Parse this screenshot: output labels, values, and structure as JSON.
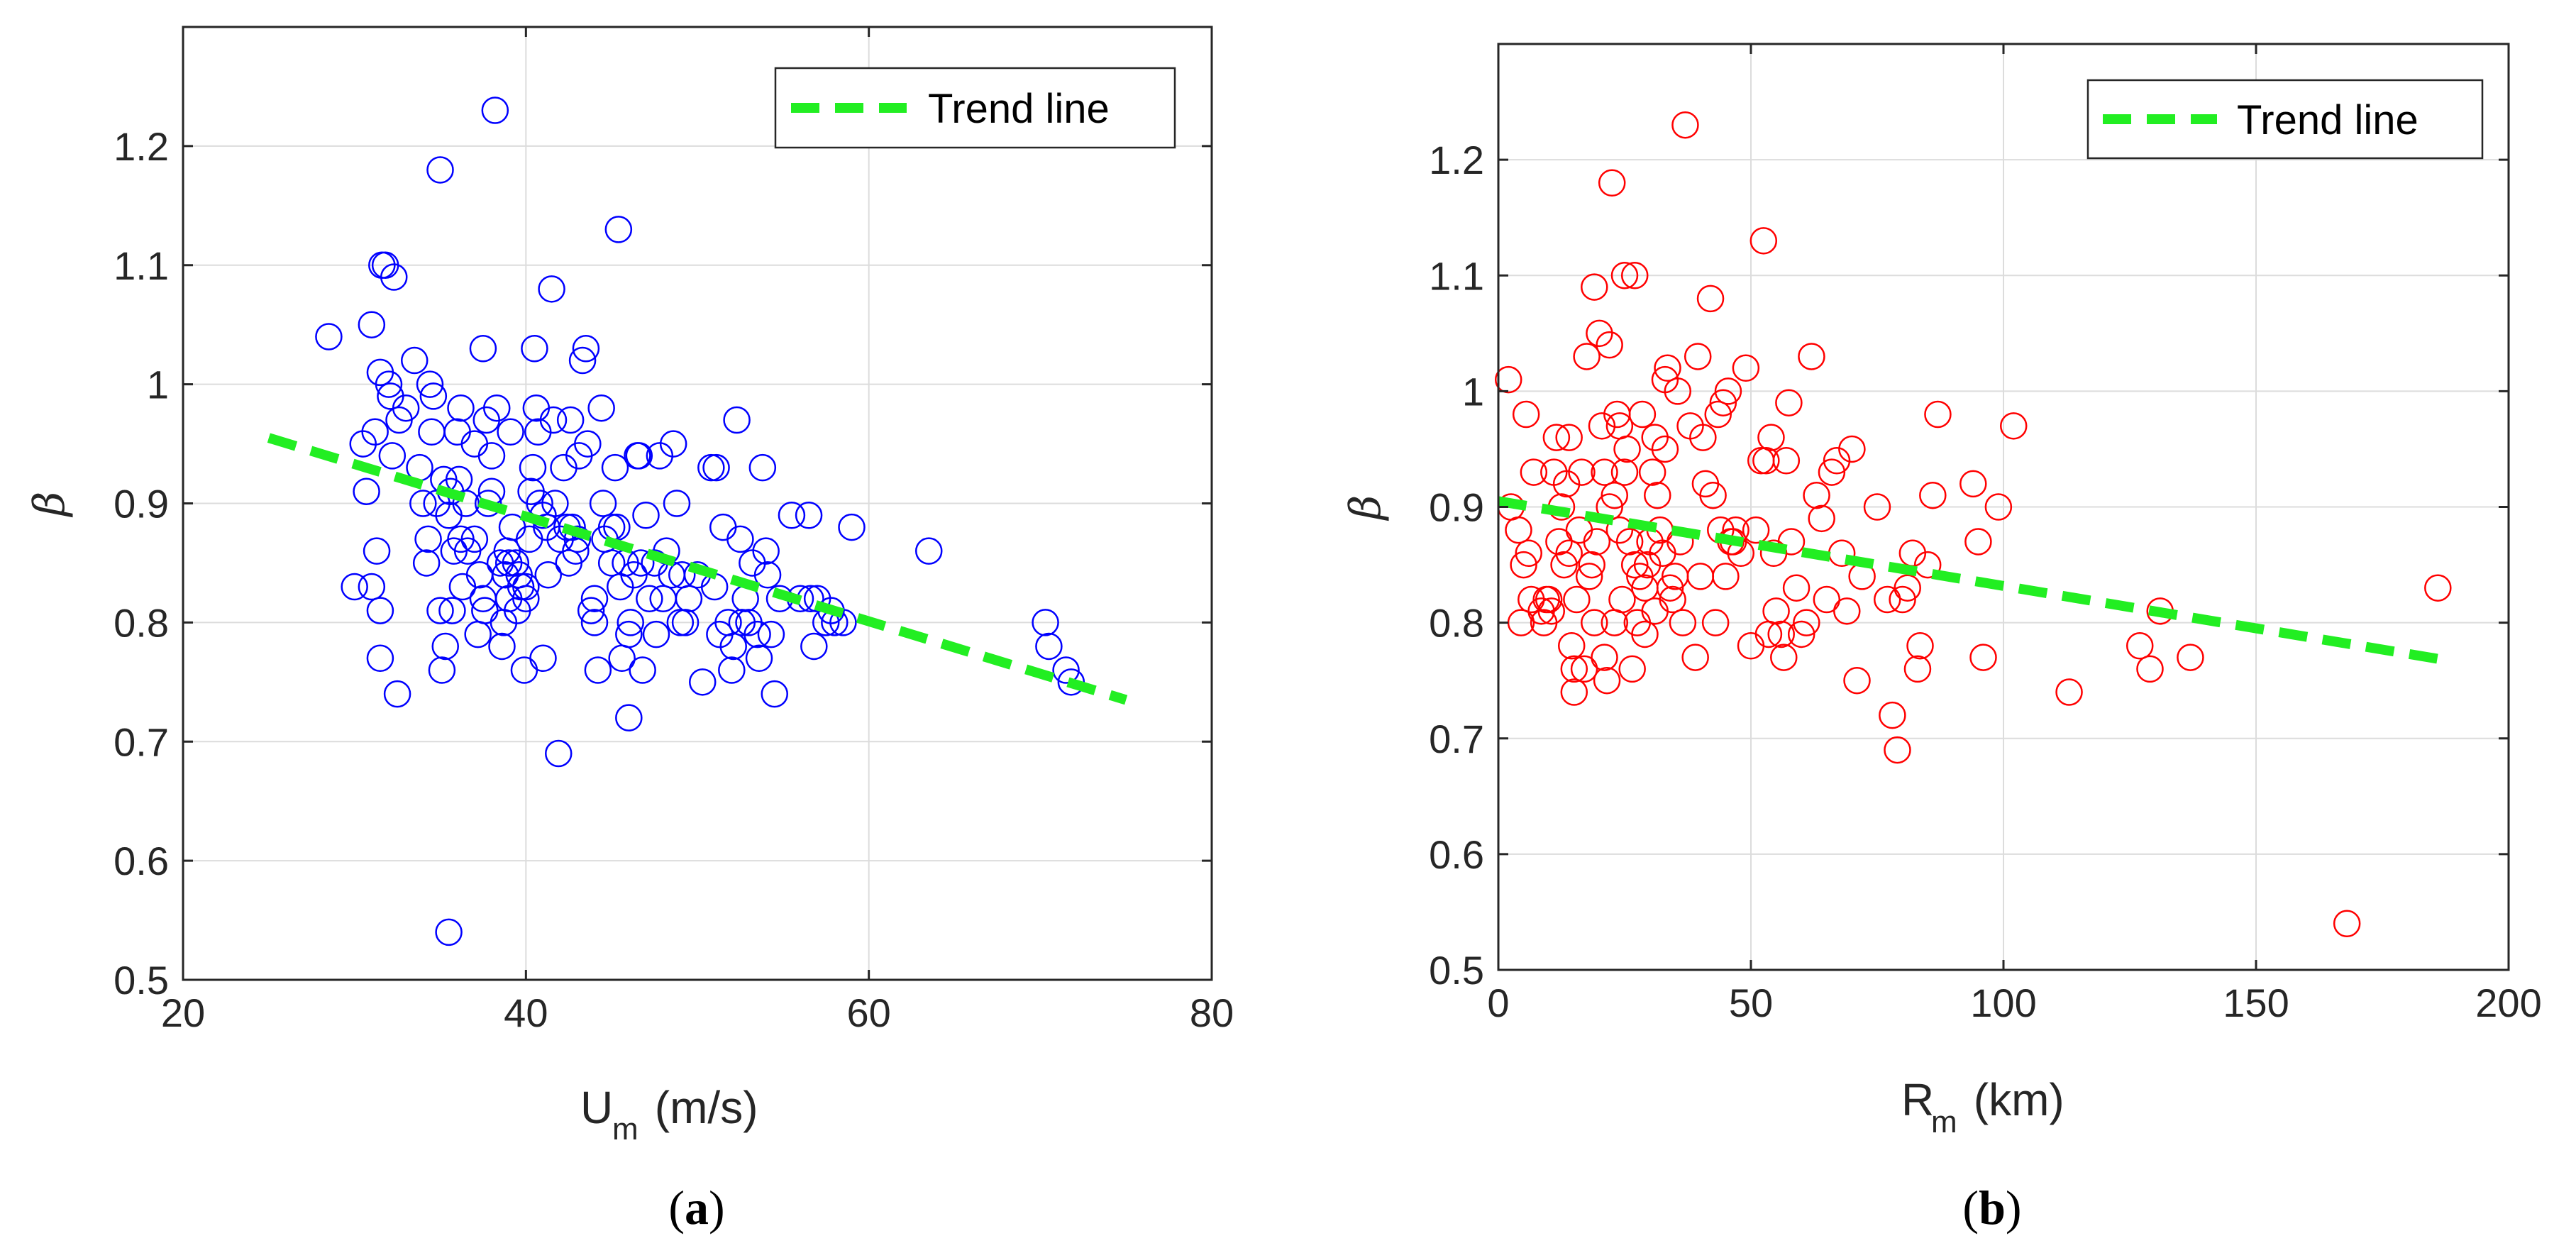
{
  "chart_data": [
    {
      "type": "scatter",
      "panel_label": "(a)",
      "panel_letter": "a",
      "xlabel_main": "U",
      "xlabel_sub": "m",
      "xlabel_unit": " (m/s)",
      "ylabel": "β",
      "xlim": [
        20,
        80
      ],
      "ylim": [
        0.5,
        1.3
      ],
      "xticks": [
        20,
        40,
        60,
        80
      ],
      "xtick_labels": [
        "20",
        "40",
        "60",
        "80"
      ],
      "yticks": [
        0.5,
        0.6,
        0.7,
        0.8,
        0.9,
        1.0,
        1.1,
        1.2
      ],
      "ytick_labels": [
        "0.5",
        "0.6",
        "0.7",
        "0.8",
        "0.9",
        "1",
        "1.1",
        "1.2"
      ],
      "grid": true,
      "legend": {
        "label": "Trend line",
        "placement": "top-right"
      },
      "marker_color": "#0000ff",
      "trend_color": "#22ee22",
      "trend": {
        "x": [
          25,
          75
        ],
        "y": [
          0.955,
          0.735
        ]
      },
      "points": [
        [
          28.5,
          1.04
        ],
        [
          30,
          0.83
        ],
        [
          30.5,
          0.95
        ],
        [
          30.7,
          0.91
        ],
        [
          31,
          0.83
        ],
        [
          31,
          1.05
        ],
        [
          31.2,
          0.96
        ],
        [
          31.3,
          0.86
        ],
        [
          31.5,
          0.77
        ],
        [
          31.5,
          0.81
        ],
        [
          31.5,
          1.01
        ],
        [
          31.6,
          1.1
        ],
        [
          31.8,
          1.1
        ],
        [
          32,
          1.0
        ],
        [
          32.1,
          0.99
        ],
        [
          32.2,
          0.94
        ],
        [
          32.3,
          1.09
        ],
        [
          32.5,
          0.74
        ],
        [
          32.6,
          0.97
        ],
        [
          33,
          0.98
        ],
        [
          33.5,
          1.02
        ],
        [
          33.8,
          0.93
        ],
        [
          34,
          0.9
        ],
        [
          34.2,
          0.85
        ],
        [
          34.3,
          0.87
        ],
        [
          34.4,
          1.0
        ],
        [
          34.5,
          0.96
        ],
        [
          34.6,
          0.99
        ],
        [
          34.8,
          0.9
        ],
        [
          35,
          1.18
        ],
        [
          35,
          0.81
        ],
        [
          35.1,
          0.76
        ],
        [
          35.2,
          0.92
        ],
        [
          35.3,
          0.78
        ],
        [
          35.5,
          0.54
        ],
        [
          35.5,
          0.89
        ],
        [
          35.6,
          0.91
        ],
        [
          35.7,
          0.81
        ],
        [
          35.8,
          0.86
        ],
        [
          36,
          0.96
        ],
        [
          36.1,
          0.92
        ],
        [
          36.2,
          0.98
        ],
        [
          36.2,
          0.87
        ],
        [
          36.3,
          0.83
        ],
        [
          36.5,
          0.9
        ],
        [
          36.6,
          0.86
        ],
        [
          37,
          0.87
        ],
        [
          37,
          0.95
        ],
        [
          37.2,
          0.79
        ],
        [
          37.3,
          0.84
        ],
        [
          37.5,
          1.03
        ],
        [
          37.5,
          0.82
        ],
        [
          37.6,
          0.81
        ],
        [
          37.7,
          0.97
        ],
        [
          37.8,
          0.9
        ],
        [
          38,
          0.91
        ],
        [
          38,
          0.94
        ],
        [
          38.2,
          1.23
        ],
        [
          38.3,
          0.98
        ],
        [
          38.5,
          0.85
        ],
        [
          38.6,
          0.78
        ],
        [
          38.7,
          0.8
        ],
        [
          38.8,
          0.84
        ],
        [
          38.9,
          0.86
        ],
        [
          39,
          0.82
        ],
        [
          39,
          0.85
        ],
        [
          39.1,
          0.96
        ],
        [
          39.2,
          0.88
        ],
        [
          39.4,
          0.85
        ],
        [
          39.5,
          0.81
        ],
        [
          39.6,
          0.84
        ],
        [
          39.7,
          0.83
        ],
        [
          39.9,
          0.76
        ],
        [
          40,
          0.83
        ],
        [
          40,
          0.82
        ],
        [
          40.2,
          0.87
        ],
        [
          40.3,
          0.91
        ],
        [
          40.4,
          0.93
        ],
        [
          40.5,
          1.03
        ],
        [
          40.6,
          0.98
        ],
        [
          40.7,
          0.96
        ],
        [
          40.8,
          0.9
        ],
        [
          41,
          0.77
        ],
        [
          41,
          0.89
        ],
        [
          41.2,
          0.88
        ],
        [
          41.3,
          0.84
        ],
        [
          41.5,
          1.08
        ],
        [
          41.6,
          0.97
        ],
        [
          41.7,
          0.9
        ],
        [
          41.9,
          0.69
        ],
        [
          42,
          0.87
        ],
        [
          42.2,
          0.93
        ],
        [
          42.4,
          0.88
        ],
        [
          42.5,
          0.85
        ],
        [
          42.6,
          0.97
        ],
        [
          42.7,
          0.88
        ],
        [
          42.9,
          0.86
        ],
        [
          43,
          0.87
        ],
        [
          43.1,
          0.94
        ],
        [
          43.3,
          1.02
        ],
        [
          43.5,
          1.03
        ],
        [
          43.6,
          0.95
        ],
        [
          43.8,
          0.81
        ],
        [
          44,
          0.82
        ],
        [
          44,
          0.8
        ],
        [
          44.2,
          0.76
        ],
        [
          44.4,
          0.98
        ],
        [
          44.5,
          0.9
        ],
        [
          44.6,
          0.87
        ],
        [
          45,
          0.85
        ],
        [
          45,
          0.88
        ],
        [
          45.2,
          0.93
        ],
        [
          45.3,
          0.88
        ],
        [
          45.4,
          1.13
        ],
        [
          45.5,
          0.83
        ],
        [
          45.6,
          0.77
        ],
        [
          45.8,
          0.85
        ],
        [
          46,
          0.72
        ],
        [
          46,
          0.79
        ],
        [
          46.1,
          0.8
        ],
        [
          46.3,
          0.84
        ],
        [
          46.5,
          0.94
        ],
        [
          46.6,
          0.94
        ],
        [
          46.7,
          0.85
        ],
        [
          46.8,
          0.76
        ],
        [
          47,
          0.89
        ],
        [
          47.2,
          0.82
        ],
        [
          47.5,
          0.85
        ],
        [
          47.6,
          0.79
        ],
        [
          47.8,
          0.94
        ],
        [
          48,
          0.82
        ],
        [
          48.2,
          0.86
        ],
        [
          48.5,
          0.84
        ],
        [
          48.6,
          0.95
        ],
        [
          48.8,
          0.9
        ],
        [
          49,
          0.8
        ],
        [
          49.1,
          0.84
        ],
        [
          49.3,
          0.8
        ],
        [
          49.5,
          0.82
        ],
        [
          50,
          0.84
        ],
        [
          50.3,
          0.75
        ],
        [
          50.8,
          0.93
        ],
        [
          51,
          0.83
        ],
        [
          51.1,
          0.93
        ],
        [
          51.3,
          0.79
        ],
        [
          51.5,
          0.88
        ],
        [
          51.8,
          0.8
        ],
        [
          52,
          0.76
        ],
        [
          52.1,
          0.78
        ],
        [
          52.3,
          0.97
        ],
        [
          52.5,
          0.87
        ],
        [
          52.6,
          0.8
        ],
        [
          52.8,
          0.82
        ],
        [
          53,
          0.8
        ],
        [
          53.2,
          0.85
        ],
        [
          53.5,
          0.79
        ],
        [
          53.6,
          0.77
        ],
        [
          53.8,
          0.93
        ],
        [
          54,
          0.86
        ],
        [
          54.1,
          0.84
        ],
        [
          54.3,
          0.79
        ],
        [
          54.5,
          0.74
        ],
        [
          54.8,
          0.82
        ],
        [
          55.5,
          0.89
        ],
        [
          56,
          0.82
        ],
        [
          56.5,
          0.89
        ],
        [
          56.6,
          0.82
        ],
        [
          56.8,
          0.78
        ],
        [
          57,
          0.82
        ],
        [
          57.5,
          0.8
        ],
        [
          57.8,
          0.81
        ],
        [
          58,
          0.8
        ],
        [
          58.5,
          0.8
        ],
        [
          59,
          0.88
        ],
        [
          63.5,
          0.86
        ],
        [
          70.3,
          0.8
        ],
        [
          70.5,
          0.78
        ],
        [
          71.5,
          0.76
        ],
        [
          71.8,
          0.75
        ]
      ]
    },
    {
      "type": "scatter",
      "panel_label": "(b)",
      "panel_letter": "b",
      "xlabel_main": "R",
      "xlabel_sub": "m",
      "xlabel_unit": " (km)",
      "ylabel": "β",
      "xlim": [
        0,
        200
      ],
      "ylim": [
        0.5,
        1.3
      ],
      "xticks": [
        0,
        50,
        100,
        150,
        200
      ],
      "xtick_labels": [
        "0",
        "50",
        "100",
        "150",
        "200"
      ],
      "yticks": [
        0.5,
        0.6,
        0.7,
        0.8,
        0.9,
        1.0,
        1.1,
        1.2
      ],
      "ytick_labels": [
        "0.5",
        "0.6",
        "0.7",
        "0.8",
        "0.9",
        "1",
        "1.1",
        "1.2"
      ],
      "grid": true,
      "legend": {
        "label": "Trend line",
        "placement": "top-right"
      },
      "marker_color": "#ff0000",
      "trend_color": "#22ee22",
      "trend": {
        "x": [
          0,
          187
        ],
        "y": [
          0.905,
          0.768
        ]
      },
      "points": [
        [
          2,
          1.01
        ],
        [
          2.5,
          0.9
        ],
        [
          4,
          0.88
        ],
        [
          4.5,
          0.8
        ],
        [
          5,
          0.85
        ],
        [
          5.5,
          0.98
        ],
        [
          6,
          0.86
        ],
        [
          6.5,
          0.82
        ],
        [
          7,
          0.93
        ],
        [
          8.5,
          0.81
        ],
        [
          9,
          0.8
        ],
        [
          9.5,
          0.82
        ],
        [
          10,
          0.82
        ],
        [
          10.5,
          0.81
        ],
        [
          11,
          0.93
        ],
        [
          11.5,
          0.96
        ],
        [
          12,
          0.87
        ],
        [
          12.5,
          0.9
        ],
        [
          13,
          0.85
        ],
        [
          13.5,
          0.92
        ],
        [
          14,
          0.96
        ],
        [
          14,
          0.86
        ],
        [
          14.5,
          0.78
        ],
        [
          15,
          0.74
        ],
        [
          15,
          0.76
        ],
        [
          15.5,
          0.82
        ],
        [
          16,
          0.88
        ],
        [
          16.5,
          0.93
        ],
        [
          17,
          0.76
        ],
        [
          17.5,
          1.03
        ],
        [
          18,
          0.84
        ],
        [
          18.5,
          0.85
        ],
        [
          19,
          0.8
        ],
        [
          19,
          1.09
        ],
        [
          19.5,
          0.87
        ],
        [
          20,
          1.05
        ],
        [
          20.5,
          0.97
        ],
        [
          21,
          0.93
        ],
        [
          21,
          0.77
        ],
        [
          21.5,
          0.75
        ],
        [
          22,
          1.04
        ],
        [
          22,
          0.9
        ],
        [
          22.5,
          1.18
        ],
        [
          23,
          0.91
        ],
        [
          23,
          0.8
        ],
        [
          23.5,
          0.98
        ],
        [
          24,
          0.88
        ],
        [
          24,
          0.97
        ],
        [
          24.5,
          0.82
        ],
        [
          25,
          1.1
        ],
        [
          25,
          0.93
        ],
        [
          25.5,
          0.95
        ],
        [
          26,
          0.87
        ],
        [
          26.5,
          0.76
        ],
        [
          27,
          1.1
        ],
        [
          27,
          0.85
        ],
        [
          27.5,
          0.8
        ],
        [
          28,
          0.84
        ],
        [
          28.5,
          0.98
        ],
        [
          29,
          0.79
        ],
        [
          29,
          0.83
        ],
        [
          29.5,
          0.85
        ],
        [
          30,
          0.87
        ],
        [
          30.5,
          0.93
        ],
        [
          31,
          0.96
        ],
        [
          31,
          0.81
        ],
        [
          31.5,
          0.91
        ],
        [
          32,
          0.88
        ],
        [
          32.5,
          0.86
        ],
        [
          33,
          1.01
        ],
        [
          33,
          0.95
        ],
        [
          33.5,
          1.02
        ],
        [
          34,
          0.83
        ],
        [
          34.5,
          0.82
        ],
        [
          35,
          0.84
        ],
        [
          35.5,
          1.0
        ],
        [
          36,
          0.87
        ],
        [
          36.5,
          0.8
        ],
        [
          37,
          1.23
        ],
        [
          38,
          0.97
        ],
        [
          39,
          0.77
        ],
        [
          39.5,
          1.03
        ],
        [
          40,
          0.84
        ],
        [
          40.5,
          0.96
        ],
        [
          41,
          0.92
        ],
        [
          42,
          1.08
        ],
        [
          42.5,
          0.91
        ],
        [
          43,
          0.8
        ],
        [
          43.5,
          0.98
        ],
        [
          44,
          0.88
        ],
        [
          44.5,
          0.99
        ],
        [
          45,
          0.84
        ],
        [
          45.5,
          1.0
        ],
        [
          46,
          0.87
        ],
        [
          46.5,
          0.87
        ],
        [
          47,
          0.88
        ],
        [
          48,
          0.86
        ],
        [
          49,
          1.02
        ],
        [
          50,
          0.78
        ],
        [
          51,
          0.88
        ],
        [
          52,
          0.94
        ],
        [
          52.5,
          1.13
        ],
        [
          53,
          0.94
        ],
        [
          53.5,
          0.79
        ],
        [
          54,
          0.96
        ],
        [
          54.5,
          0.86
        ],
        [
          55,
          0.81
        ],
        [
          56,
          0.79
        ],
        [
          56.5,
          0.77
        ],
        [
          57,
          0.94
        ],
        [
          57.5,
          0.99
        ],
        [
          58,
          0.87
        ],
        [
          59,
          0.83
        ],
        [
          60,
          0.79
        ],
        [
          61,
          0.8
        ],
        [
          62,
          1.03
        ],
        [
          63,
          0.91
        ],
        [
          64,
          0.89
        ],
        [
          65,
          0.82
        ],
        [
          66,
          0.93
        ],
        [
          67,
          0.94
        ],
        [
          68,
          0.86
        ],
        [
          69,
          0.81
        ],
        [
          70,
          0.95
        ],
        [
          71,
          0.75
        ],
        [
          72,
          0.84
        ],
        [
          75,
          0.9
        ],
        [
          77,
          0.82
        ],
        [
          78,
          0.72
        ],
        [
          79,
          0.69
        ],
        [
          80,
          0.82
        ],
        [
          81,
          0.83
        ],
        [
          82,
          0.86
        ],
        [
          83,
          0.76
        ],
        [
          83.5,
          0.78
        ],
        [
          85,
          0.85
        ],
        [
          86,
          0.91
        ],
        [
          87,
          0.98
        ],
        [
          94,
          0.92
        ],
        [
          95,
          0.87
        ],
        [
          96,
          0.77
        ],
        [
          99,
          0.9
        ],
        [
          102,
          0.97
        ],
        [
          113,
          0.74
        ],
        [
          127,
          0.78
        ],
        [
          129,
          0.76
        ],
        [
          131,
          0.81
        ],
        [
          137,
          0.77
        ],
        [
          168,
          0.54
        ],
        [
          186,
          0.83
        ]
      ]
    }
  ]
}
